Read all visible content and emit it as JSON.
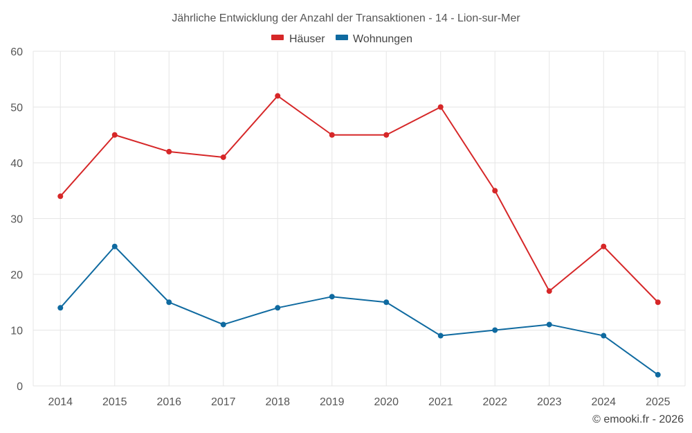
{
  "chart_data": {
    "type": "line",
    "title": "Jährliche Entwicklung der Anzahl der Transaktionen - 14 - Lion-sur-Mer",
    "categories": [
      "2014",
      "2015",
      "2016",
      "2017",
      "2018",
      "2019",
      "2020",
      "2021",
      "2022",
      "2023",
      "2024",
      "2025"
    ],
    "series": [
      {
        "name": "Häuser",
        "color": "#d62728",
        "values": [
          34,
          45,
          42,
          41,
          52,
          45,
          45,
          50,
          35,
          17,
          25,
          15
        ]
      },
      {
        "name": "Wohnungen",
        "color": "#0f6aa0",
        "values": [
          14,
          25,
          15,
          11,
          14,
          16,
          15,
          9,
          10,
          11,
          9,
          2
        ]
      }
    ],
    "yticks": [
      0,
      10,
      20,
      30,
      40,
      50,
      60
    ],
    "ylim": [
      0,
      60
    ],
    "xlabel": "",
    "ylabel": "",
    "grid": true,
    "legend_position": "top-center"
  },
  "credit": "© emooki.fr - 2026"
}
